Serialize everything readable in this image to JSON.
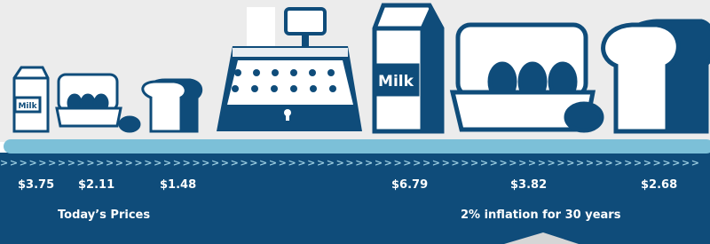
{
  "illustrations": {
    "small_carton_label": "Milk",
    "large_carton_label": "Milk"
  },
  "divider": ">>>>>>>>>>>>>>>>>>>>>>>>>>>>>>>>>>>>>>>>>>>>>>>>>>>>>>>>>>>>>>>>>>>>>>>>>",
  "today": {
    "prices": [
      "$3.75",
      "$2.11",
      "$1.48"
    ],
    "caption": "Today’s Prices"
  },
  "future": {
    "prices": [
      "$6.79",
      "$3.82",
      "$2.68"
    ],
    "caption": "2% inflation for 30 years"
  }
}
